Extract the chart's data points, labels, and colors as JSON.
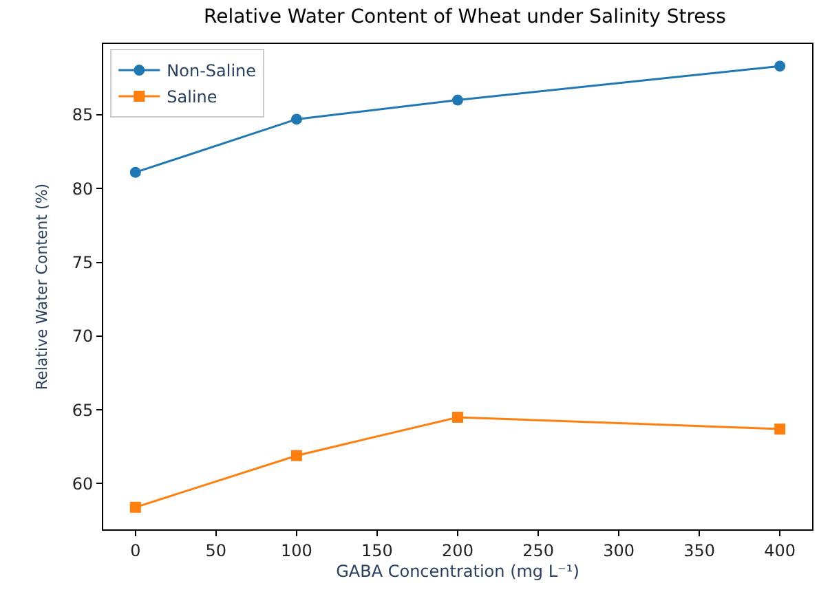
{
  "chart_data": {
    "type": "line",
    "title": "Relative Water Content of Wheat under Salinity Stress",
    "xlabel": "GABA Concentration (mg L⁻¹)",
    "ylabel": "Relative Water Content (%)",
    "x": [
      0,
      100,
      200,
      400
    ],
    "series": [
      {
        "name": "Non-Saline",
        "color": "#1f77b4",
        "marker": "circle",
        "values": [
          81.1,
          84.7,
          86.0,
          88.3
        ]
      },
      {
        "name": "Saline",
        "color": "#ff7f0e",
        "marker": "square",
        "values": [
          58.4,
          61.9,
          64.5,
          63.7
        ]
      }
    ],
    "xlim": [
      -20,
      420
    ],
    "xticks": [
      0,
      50,
      100,
      150,
      200,
      250,
      300,
      350,
      400
    ],
    "ylim": [
      56.9,
      89.8
    ],
    "yticks": [
      60,
      65,
      70,
      75,
      80,
      85
    ],
    "legend": "top left",
    "line_style": "solid"
  }
}
